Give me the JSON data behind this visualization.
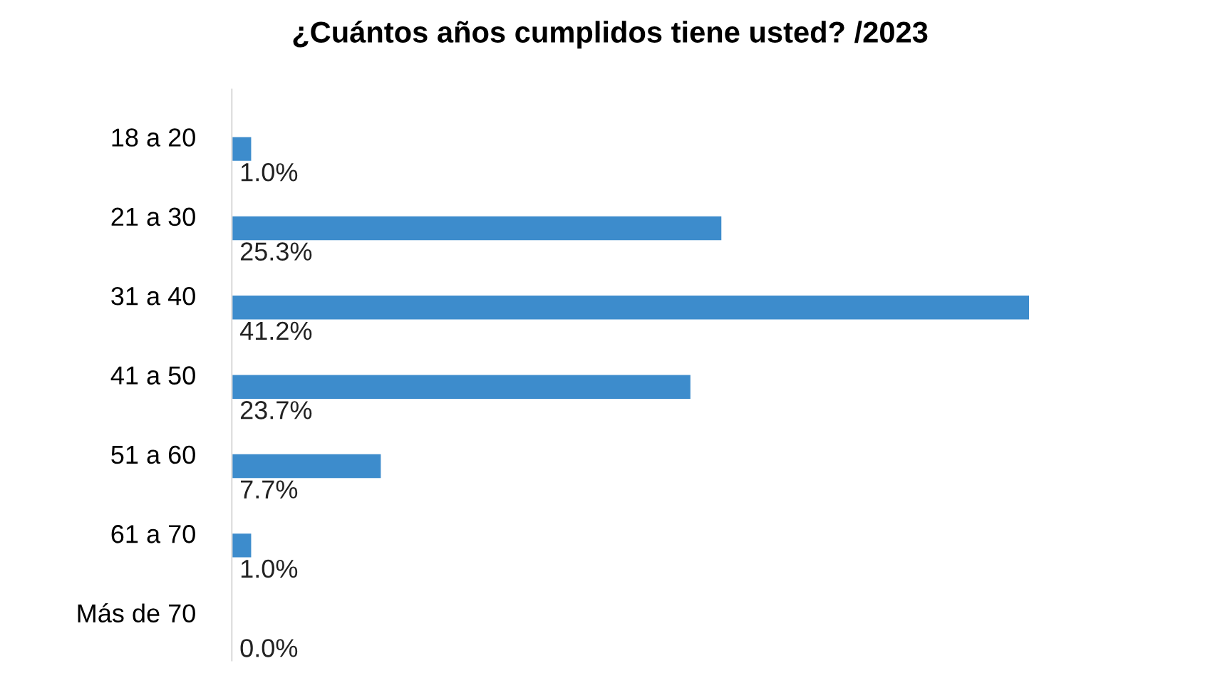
{
  "chart_data": {
    "type": "bar",
    "orientation": "horizontal",
    "title": "¿Cuántos años cumplidos tiene usted? /2023",
    "categories": [
      "18 a 20",
      "21 a 30",
      "31 a 40",
      "41 a 50",
      "51 a 60",
      "61 a 70",
      "Más de 70"
    ],
    "values": [
      1.0,
      25.3,
      41.2,
      23.7,
      7.7,
      1.0,
      0.0
    ],
    "value_labels": [
      "1.0%",
      "25.3%",
      "41.2%",
      "23.7%",
      "7.7%",
      "1.0%",
      "0.0%"
    ],
    "color": "#3d8ccc",
    "grid": false,
    "legend": false
  }
}
